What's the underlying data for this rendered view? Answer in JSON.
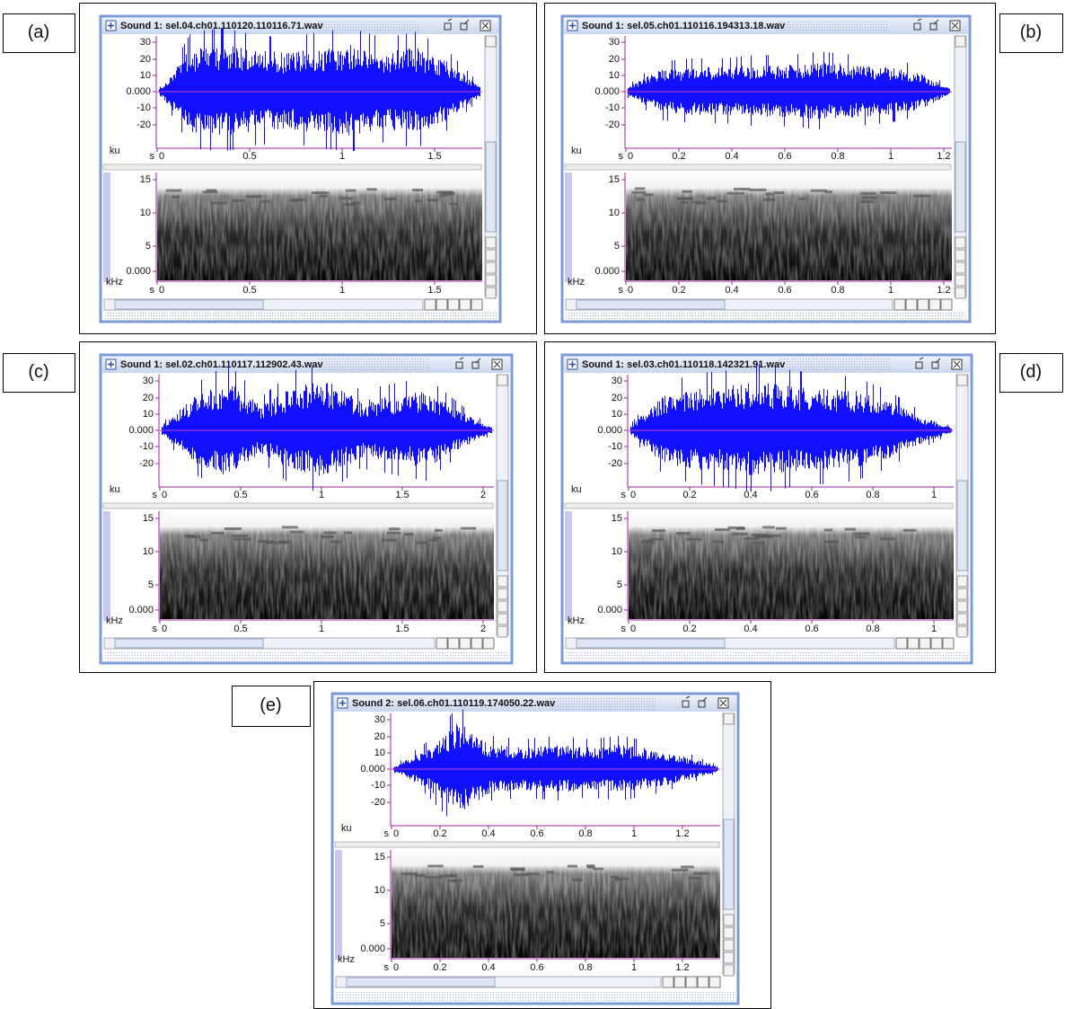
{
  "panels": [
    {
      "label": "(a)",
      "title": "Sound 1: sel.04.ch01.110120.110116.71.wav",
      "waveform": {
        "yticks": [
          "30",
          "20",
          "10",
          "0.000",
          "-10",
          "-20"
        ],
        "unit": "ku",
        "x_unit": "s",
        "xticks": [
          "0",
          "0.5",
          "1",
          "1.5"
        ]
      },
      "spectrogram": {
        "yticks": [
          "15",
          "10",
          "5",
          "0.000"
        ],
        "unit": "kHz",
        "x_unit": "s",
        "xticks": [
          "0",
          "0.5",
          "1",
          "1.5"
        ]
      }
    },
    {
      "label": "(b)",
      "title": "Sound 1: sel.05.ch01.110116.194313.18.wav",
      "waveform": {
        "yticks": [
          "30",
          "20",
          "10",
          "0.000",
          "-10",
          "-20"
        ],
        "unit": "ku",
        "x_unit": "s",
        "xticks": [
          "0",
          "0.2",
          "0.4",
          "0.6",
          "0.8",
          "1",
          "1.2"
        ]
      },
      "spectrogram": {
        "yticks": [
          "15",
          "10",
          "5",
          "0.000"
        ],
        "unit": "kHz",
        "x_unit": "s",
        "xticks": [
          "0",
          "0.2",
          "0.4",
          "0.6",
          "0.8",
          "1",
          "1.2"
        ]
      }
    },
    {
      "label": "(c)",
      "title": "Sound 1: sel.02.ch01.110117.112902.43.wav",
      "waveform": {
        "yticks": [
          "30",
          "20",
          "10",
          "0.000",
          "-10",
          "-20"
        ],
        "unit": "ku",
        "x_unit": "s",
        "xticks": [
          "0",
          "0.5",
          "1",
          "1.5",
          "2"
        ]
      },
      "spectrogram": {
        "yticks": [
          "15",
          "10",
          "5",
          "0.000"
        ],
        "unit": "kHz",
        "x_unit": "s",
        "xticks": [
          "0",
          "0.5",
          "1",
          "1.5",
          "2"
        ]
      }
    },
    {
      "label": "(d)",
      "title": "Sound 1: sel.03.ch01.110118.142321.91.wav",
      "waveform": {
        "yticks": [
          "30",
          "20",
          "10",
          "0.000",
          "-10",
          "-20"
        ],
        "unit": "ku",
        "x_unit": "s",
        "xticks": [
          "0",
          "0.2",
          "0.4",
          "0.6",
          "0.8",
          "1"
        ]
      },
      "spectrogram": {
        "yticks": [
          "15",
          "10",
          "5",
          "0.000"
        ],
        "unit": "kHz",
        "x_unit": "s",
        "xticks": [
          "0",
          "0.2",
          "0.4",
          "0.6",
          "0.8",
          "1"
        ]
      }
    },
    {
      "label": "(e)",
      "title": "Sound 2: sel.06.ch01.110119.174050.22.wav",
      "waveform": {
        "yticks": [
          "30",
          "20",
          "10",
          "0.000",
          "-10",
          "-20"
        ],
        "unit": "ku",
        "x_unit": "s",
        "xticks": [
          "0",
          "0.2",
          "0.4",
          "0.6",
          "0.8",
          "1",
          "1.2"
        ]
      },
      "spectrogram": {
        "yticks": [
          "15",
          "10",
          "5",
          "0.000"
        ],
        "unit": "kHz",
        "x_unit": "s",
        "xticks": [
          "0",
          "0.2",
          "0.4",
          "0.6",
          "0.8",
          "1",
          "1.2"
        ]
      }
    }
  ]
}
